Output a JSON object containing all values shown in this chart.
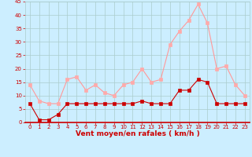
{
  "x": [
    0,
    1,
    2,
    3,
    4,
    5,
    6,
    7,
    8,
    9,
    10,
    11,
    12,
    13,
    14,
    15,
    16,
    17,
    18,
    19,
    20,
    21,
    22,
    23
  ],
  "wind_avg": [
    7,
    1,
    1,
    3,
    7,
    7,
    7,
    7,
    7,
    7,
    7,
    7,
    8,
    7,
    7,
    7,
    12,
    12,
    16,
    15,
    7,
    7,
    7,
    7
  ],
  "wind_gust": [
    14,
    8,
    7,
    7,
    16,
    17,
    12,
    14,
    11,
    10,
    14,
    15,
    20,
    15,
    16,
    29,
    34,
    38,
    44,
    37,
    20,
    21,
    14,
    10
  ],
  "xlim": [
    -0.5,
    23.5
  ],
  "ylim": [
    0,
    45
  ],
  "yticks": [
    0,
    5,
    10,
    15,
    20,
    25,
    30,
    35,
    40,
    45
  ],
  "xticks": [
    0,
    1,
    2,
    3,
    4,
    5,
    6,
    7,
    8,
    9,
    10,
    11,
    12,
    13,
    14,
    15,
    16,
    17,
    18,
    19,
    20,
    21,
    22,
    23
  ],
  "xlabel": "Vent moyen/en rafales ( km/h )",
  "bg_color": "#cceeff",
  "grid_color": "#aacccc",
  "line_avg_color": "#cc0000",
  "line_gust_color": "#ff9999",
  "marker_avg_color": "#cc0000",
  "marker_gust_color": "#ffaaaa",
  "label_color": "#cc0000",
  "ytick_color": "#cc0000",
  "marker_size": 2.5,
  "linewidth": 0.8,
  "tick_fontsize": 5,
  "xlabel_fontsize": 6.5
}
